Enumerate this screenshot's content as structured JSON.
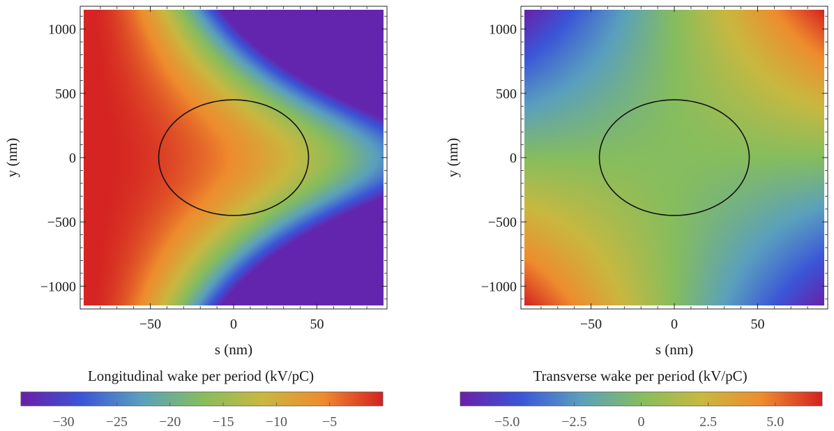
{
  "chart_data": [
    {
      "type": "heatmap",
      "xlabel": "s (nm)",
      "ylabel": "y (nm)",
      "xlim": [
        -90,
        90
      ],
      "ylim": [
        -1150,
        1150
      ],
      "x_ticks": [
        -50,
        0,
        50
      ],
      "x_tick_labels": [
        "−50",
        "0",
        "50"
      ],
      "y_ticks": [
        -1000,
        -500,
        0,
        500,
        1000
      ],
      "y_tick_labels": [
        "−1000",
        "−500",
        "0",
        "500",
        "1000"
      ],
      "colorbar_title": "Longitudinal wake per period (kV/pC)",
      "colorbar_range": [
        -34,
        0
      ],
      "colorbar_ticks": [
        -30,
        -25,
        -20,
        -15,
        -10,
        -5
      ],
      "colorbar_tick_labels": [
        "−30",
        "−25",
        "−20",
        "−15",
        "−10",
        "−5"
      ],
      "ellipse": {
        "center": [
          0,
          0
        ],
        "semi_axis_s": 45,
        "semi_axis_y": 450
      },
      "field": "longitudinal"
    },
    {
      "type": "heatmap",
      "xlabel": "s (nm)",
      "ylabel": "y (nm)",
      "xlim": [
        -90,
        90
      ],
      "ylim": [
        -1150,
        1150
      ],
      "x_ticks": [
        -50,
        0,
        50
      ],
      "x_tick_labels": [
        "−50",
        "0",
        "50"
      ],
      "y_ticks": [
        -1000,
        -500,
        0,
        500,
        1000
      ],
      "y_tick_labels": [
        "−1000",
        "−500",
        "0",
        "500",
        "1000"
      ],
      "colorbar_title": "Transverse wake per period (kV/pC)",
      "colorbar_range": [
        -6.75,
        6.75
      ],
      "colorbar_ticks": [
        -5.0,
        -2.5,
        0,
        2.5,
        5.0
      ],
      "colorbar_tick_labels": [
        "−5.0",
        "−2.5",
        "0",
        "2.5",
        "5.0"
      ],
      "ellipse": {
        "center": [
          0,
          0
        ],
        "semi_axis_s": 45,
        "semi_axis_y": 450
      },
      "field": "transverse"
    }
  ],
  "colormap": [
    "#6a1fa8",
    "#3b55d8",
    "#5aa0be",
    "#86bd5e",
    "#c9b840",
    "#ee8c2e",
    "#d42121"
  ]
}
